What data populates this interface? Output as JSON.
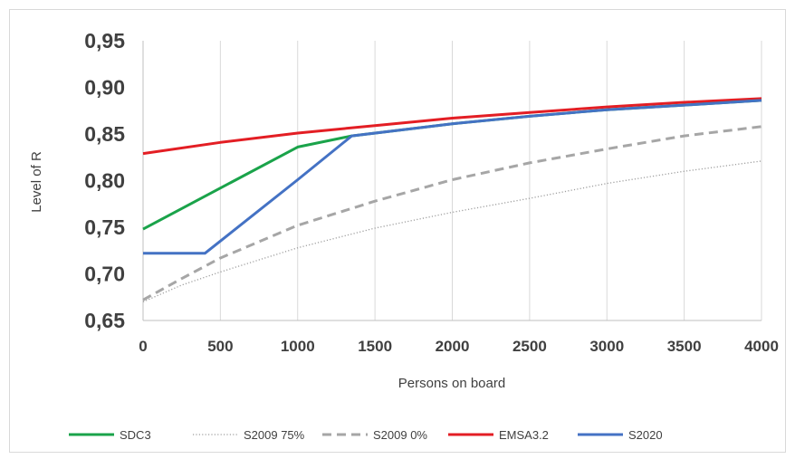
{
  "chart_data": {
    "type": "line",
    "xlabel": "Persons on board",
    "ylabel": "Level of R",
    "xlim": [
      0,
      4000
    ],
    "ylim": [
      0.65,
      0.95
    ],
    "x_ticks": [
      "0",
      "500",
      "1000",
      "1500",
      "2000",
      "2500",
      "3000",
      "3500",
      "4000"
    ],
    "y_ticks": [
      "0,95",
      "0,90",
      "0,85",
      "0,80",
      "0,75",
      "0,70",
      "0,65"
    ],
    "grid": "vertical",
    "legend_position": "bottom",
    "series": [
      {
        "name": "SDC3",
        "color": "#1aa34a",
        "dash": "solid",
        "x": [
          0,
          1000,
          1350,
          2000,
          2500,
          3000,
          3500,
          4000
        ],
        "y": [
          0.748,
          0.836,
          0.848,
          0.861,
          0.869,
          0.876,
          0.881,
          0.886
        ]
      },
      {
        "name": "S2009 75%",
        "color": "#9e9e9e",
        "dash": "dotted",
        "x": [
          0,
          250,
          500,
          1000,
          1500,
          2000,
          2500,
          3000,
          3500,
          4000
        ],
        "y": [
          0.67,
          0.688,
          0.702,
          0.728,
          0.749,
          0.766,
          0.781,
          0.797,
          0.81,
          0.821
        ]
      },
      {
        "name": "S2009 0%",
        "color": "#a6a6a6",
        "dash": "dashed",
        "x": [
          0,
          250,
          500,
          1000,
          1500,
          2000,
          2500,
          3000,
          3500,
          4000
        ],
        "y": [
          0.672,
          0.695,
          0.717,
          0.752,
          0.778,
          0.801,
          0.819,
          0.834,
          0.848,
          0.858
        ]
      },
      {
        "name": "EMSA3.2",
        "color": "#e31e24",
        "dash": "solid",
        "x": [
          0,
          500,
          1000,
          1500,
          2000,
          2500,
          3000,
          3500,
          4000
        ],
        "y": [
          0.829,
          0.841,
          0.851,
          0.859,
          0.867,
          0.873,
          0.879,
          0.884,
          0.888
        ]
      },
      {
        "name": "S2020",
        "color": "#4472c4",
        "dash": "solid",
        "x": [
          0,
          400,
          1000,
          1350,
          2000,
          2500,
          3000,
          3500,
          4000
        ],
        "y": [
          0.722,
          0.722,
          0.801,
          0.848,
          0.861,
          0.869,
          0.876,
          0.881,
          0.886
        ]
      }
    ]
  }
}
